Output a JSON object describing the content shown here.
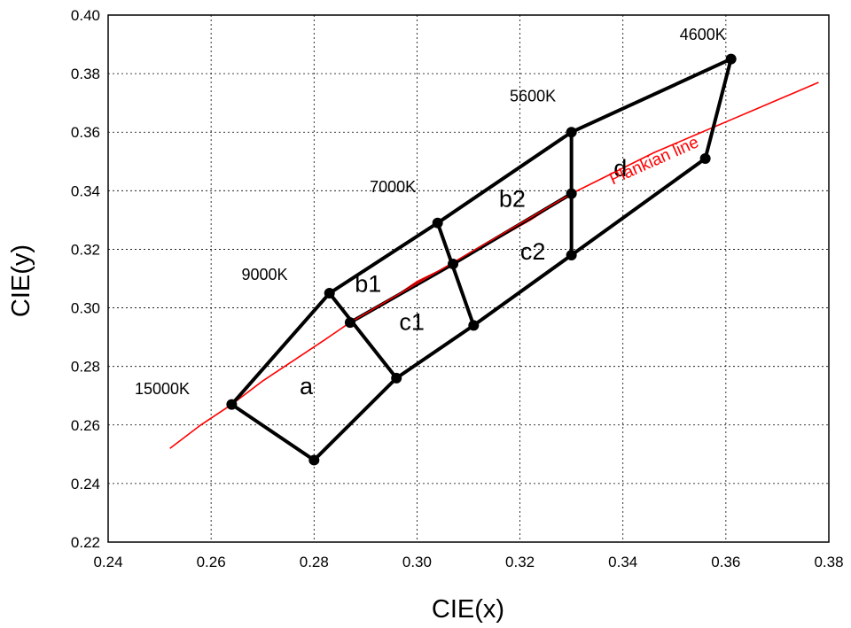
{
  "chart_data": {
    "type": "scatter",
    "xlabel": "CIE(x)",
    "ylabel": "CIE(y)",
    "xlim": [
      0.24,
      0.38
    ],
    "ylim": [
      0.22,
      0.4
    ],
    "xticks": [
      0.24,
      0.26,
      0.28,
      0.3,
      0.32,
      0.34,
      0.36,
      0.38
    ],
    "yticks": [
      0.22,
      0.24,
      0.26,
      0.28,
      0.3,
      0.32,
      0.34,
      0.36,
      0.38,
      0.4
    ],
    "xtick_labels": [
      "0.24",
      "0.26",
      "0.28",
      "0.30",
      "0.32",
      "0.34",
      "0.36",
      "0.38"
    ],
    "ytick_labels": [
      "0.22",
      "0.24",
      "0.26",
      "0.28",
      "0.30",
      "0.32",
      "0.34",
      "0.36",
      "0.38",
      "0.40"
    ],
    "grid": true,
    "points": [
      {
        "id": "p15000",
        "x": 0.264,
        "y": 0.267,
        "color": "#000000"
      },
      {
        "id": "p248",
        "x": 0.28,
        "y": 0.248,
        "color": "#000000"
      },
      {
        "id": "p9000",
        "x": 0.283,
        "y": 0.305,
        "color": "#000000"
      },
      {
        "id": "p295",
        "x": 0.287,
        "y": 0.295,
        "color": "#000000"
      },
      {
        "id": "p276",
        "x": 0.296,
        "y": 0.276,
        "color": "#000000"
      },
      {
        "id": "p7000",
        "x": 0.304,
        "y": 0.329,
        "color": "#000000"
      },
      {
        "id": "p315",
        "x": 0.307,
        "y": 0.315,
        "color": "#000000"
      },
      {
        "id": "p294",
        "x": 0.311,
        "y": 0.294,
        "color": "#000000"
      },
      {
        "id": "p5600",
        "x": 0.33,
        "y": 0.36,
        "color": "#000000"
      },
      {
        "id": "p339",
        "x": 0.33,
        "y": 0.339,
        "color": "#000000"
      },
      {
        "id": "p318",
        "x": 0.33,
        "y": 0.318,
        "color": "#000000"
      },
      {
        "id": "p4600",
        "x": 0.361,
        "y": 0.385,
        "color": "#000000"
      },
      {
        "id": "p351",
        "x": 0.356,
        "y": 0.351,
        "color": "#000000"
      }
    ],
    "segments": [
      [
        "p15000",
        "p9000"
      ],
      [
        "p9000",
        "p7000"
      ],
      [
        "p7000",
        "p5600"
      ],
      [
        "p5600",
        "p4600"
      ],
      [
        "p15000",
        "p248"
      ],
      [
        "p248",
        "p276"
      ],
      [
        "p276",
        "p294"
      ],
      [
        "p294",
        "p318"
      ],
      [
        "p318",
        "p351"
      ],
      [
        "p351",
        "p4600"
      ],
      [
        "p9000",
        "p276"
      ],
      [
        "p7000",
        "p294"
      ],
      [
        "p295",
        "p315"
      ],
      [
        "p315",
        "p339"
      ],
      [
        "p5600",
        "p318"
      ]
    ],
    "point_labels": [
      {
        "text": "15000K",
        "x": 0.2505,
        "y": 0.2705
      },
      {
        "text": "9000K",
        "x": 0.2704,
        "y": 0.3095
      },
      {
        "text": "7000K",
        "x": 0.2953,
        "y": 0.3395
      },
      {
        "text": "5600K",
        "x": 0.3225,
        "y": 0.3705
      },
      {
        "text": "4600K",
        "x": 0.3555,
        "y": 0.3915
      }
    ],
    "region_labels": [
      {
        "text": "a",
        "x": 0.2785,
        "y": 0.2705
      },
      {
        "text": "b1",
        "x": 0.2905,
        "y": 0.3055
      },
      {
        "text": "c1",
        "x": 0.299,
        "y": 0.2925
      },
      {
        "text": "b2",
        "x": 0.3185,
        "y": 0.3345
      },
      {
        "text": "c2",
        "x": 0.3225,
        "y": 0.3165
      },
      {
        "text": "d",
        "x": 0.3395,
        "y": 0.345
      }
    ],
    "curve": {
      "label": "Plankian line",
      "color": "#ff0000",
      "label_x": 0.338,
      "label_y": 0.342,
      "label_angle": -24,
      "x": [
        0.252,
        0.258,
        0.264,
        0.27,
        0.276,
        0.282,
        0.287,
        0.295,
        0.3,
        0.307,
        0.315,
        0.322,
        0.33,
        0.338,
        0.346,
        0.354,
        0.362,
        0.37,
        0.378
      ],
      "y": [
        0.252,
        0.26,
        0.267,
        0.275,
        0.282,
        0.289,
        0.295,
        0.303,
        0.309,
        0.315,
        0.323,
        0.33,
        0.339,
        0.346,
        0.353,
        0.359,
        0.365,
        0.371,
        0.377
      ]
    }
  }
}
